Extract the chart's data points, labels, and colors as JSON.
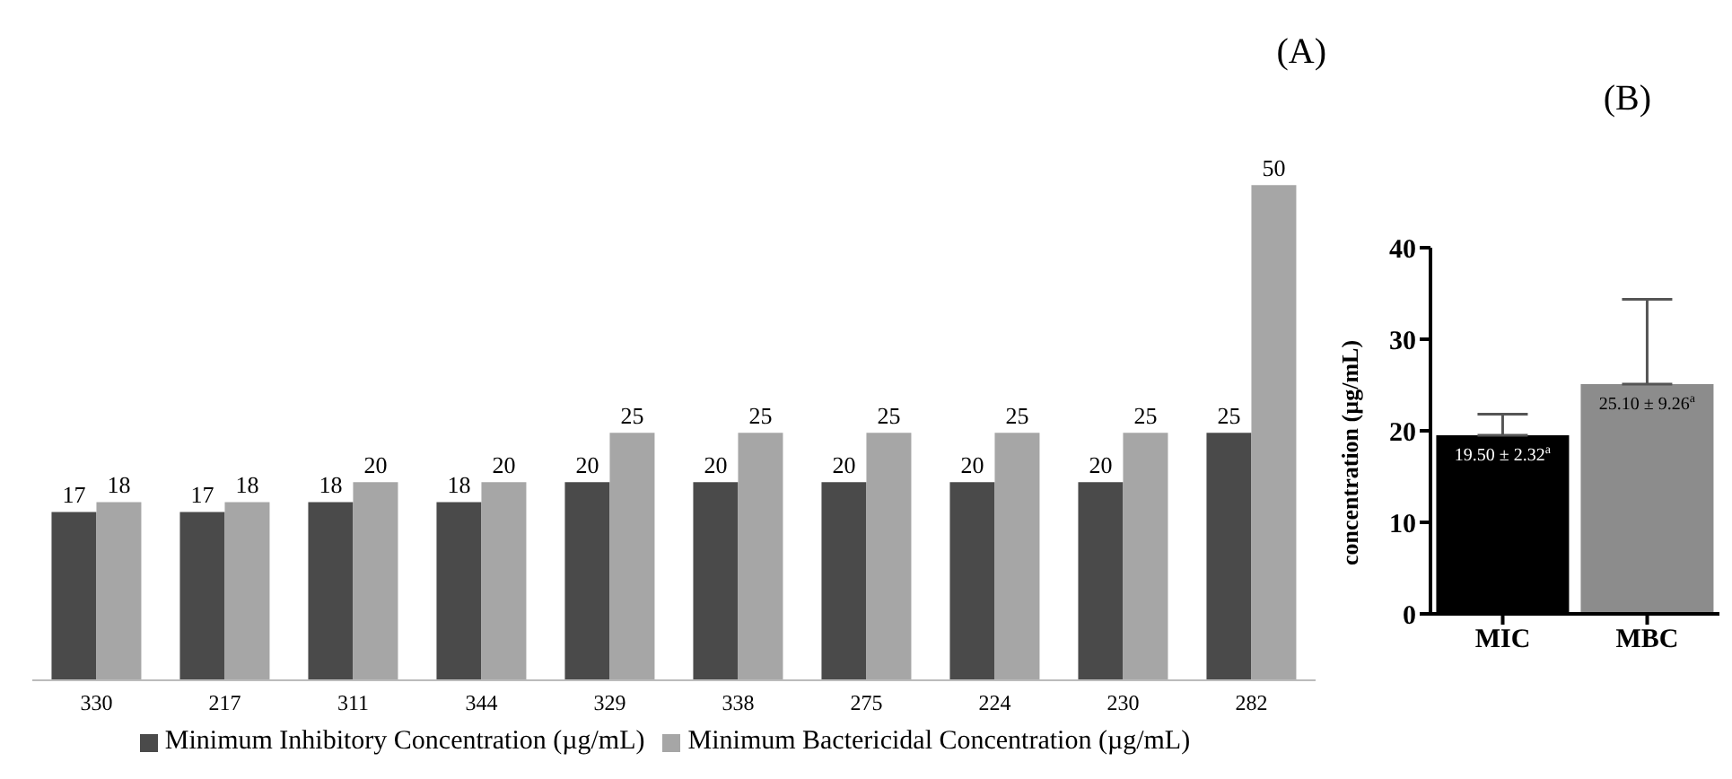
{
  "chart_data": [
    {
      "type": "bar",
      "categories": [
        "330",
        "217",
        "311",
        "344",
        "329",
        "338",
        "275",
        "224",
        "230",
        "282"
      ],
      "series": [
        {
          "name": "Minimum Inhibitory Concentration (µg/mL)",
          "color": "#4a4a4a",
          "values": [
            17,
            17,
            18,
            18,
            20,
            20,
            20,
            20,
            20,
            25
          ]
        },
        {
          "name": "Minimum Bactericidal Concentration (µg/mL)",
          "color": "#a6a6a6",
          "values": [
            18,
            18,
            20,
            20,
            25,
            25,
            25,
            25,
            25,
            50
          ]
        }
      ],
      "data_labels": true,
      "legend": "bottom",
      "grid": false,
      "annotations": [
        "(A)"
      ]
    },
    {
      "type": "bar",
      "categories": [
        "MIC",
        "MBC"
      ],
      "values": [
        19.5,
        25.1
      ],
      "colors": [
        "#000000",
        "#8c8c8c"
      ],
      "errors": [
        2.32,
        9.26
      ],
      "value_labels": [
        "19.50 ± 2.32$^{a}$",
        "25.10 ± 9.26$^{a}$"
      ],
      "ylabel": "concentration (µg/mL)",
      "ylim": [
        0,
        40
      ],
      "yticks": [
        0,
        10,
        20,
        30,
        40
      ],
      "grid": false,
      "annotations": [
        "(B)"
      ]
    }
  ]
}
